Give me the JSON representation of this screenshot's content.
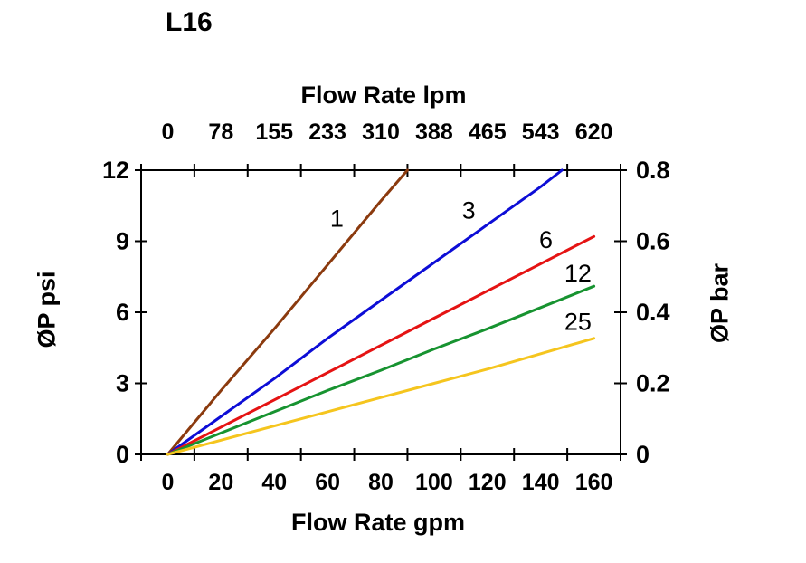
{
  "title": "L16",
  "chart_data": {
    "type": "line",
    "title": "L16",
    "x_bottom": {
      "title": "Flow Rate gpm",
      "ticks": [
        "0",
        "20",
        "40",
        "60",
        "80",
        "100",
        "120",
        "140",
        "160"
      ],
      "min": 0,
      "max": 160
    },
    "x_top": {
      "title": "Flow Rate lpm",
      "ticks": [
        "0",
        "78",
        "155",
        "233",
        "310",
        "388",
        "465",
        "543",
        "620"
      ]
    },
    "y_left": {
      "title": "ØP psi",
      "ticks": [
        "0",
        "3",
        "6",
        "9",
        "12"
      ],
      "min": 0,
      "max": 12
    },
    "y_right": {
      "title": "ØP bar",
      "ticks": [
        "0",
        "0.2",
        "0.4",
        "0.6",
        "0.8"
      ],
      "min": 0,
      "max": 0.8
    },
    "grid": false,
    "legend": "inline-labels",
    "series": [
      {
        "name": "1",
        "color": "#8B3A0E",
        "points": [
          [
            0,
            0
          ],
          [
            20,
            2.7
          ],
          [
            40,
            5.3
          ],
          [
            60,
            8.0
          ],
          [
            80,
            10.7
          ],
          [
            90,
            12
          ]
        ],
        "label_at": {
          "gpm": 63.5,
          "psi": 9.95
        }
      },
      {
        "name": "3",
        "color": "#0D0DD6",
        "points": [
          [
            0,
            0
          ],
          [
            20,
            1.6
          ],
          [
            40,
            3.2
          ],
          [
            60,
            4.9
          ],
          [
            80,
            6.5
          ],
          [
            100,
            8.1
          ],
          [
            120,
            9.7
          ],
          [
            140,
            11.3
          ],
          [
            148,
            12
          ]
        ],
        "label_at": {
          "gpm": 113,
          "psi": 10.3
        }
      },
      {
        "name": "6",
        "color": "#E51313",
        "points": [
          [
            0,
            0
          ],
          [
            20,
            1.15
          ],
          [
            40,
            2.3
          ],
          [
            60,
            3.45
          ],
          [
            80,
            4.6
          ],
          [
            100,
            5.75
          ],
          [
            120,
            6.9
          ],
          [
            140,
            8.05
          ],
          [
            160,
            9.2
          ]
        ],
        "label_at": {
          "gpm": 142,
          "psi": 9.05
        }
      },
      {
        "name": "12",
        "color": "#179330",
        "points": [
          [
            0,
            0
          ],
          [
            20,
            0.9
          ],
          [
            40,
            1.8
          ],
          [
            60,
            2.7
          ],
          [
            80,
            3.55
          ],
          [
            100,
            4.45
          ],
          [
            120,
            5.3
          ],
          [
            140,
            6.2
          ],
          [
            160,
            7.1
          ]
        ],
        "label_at": {
          "gpm": 154,
          "psi": 7.65
        }
      },
      {
        "name": "25",
        "color": "#F5C51E",
        "points": [
          [
            0,
            0
          ],
          [
            20,
            0.6
          ],
          [
            40,
            1.2
          ],
          [
            60,
            1.8
          ],
          [
            80,
            2.4
          ],
          [
            100,
            3.0
          ],
          [
            120,
            3.6
          ],
          [
            140,
            4.25
          ],
          [
            160,
            4.9
          ]
        ],
        "label_at": {
          "gpm": 154,
          "psi": 5.6
        }
      }
    ]
  }
}
